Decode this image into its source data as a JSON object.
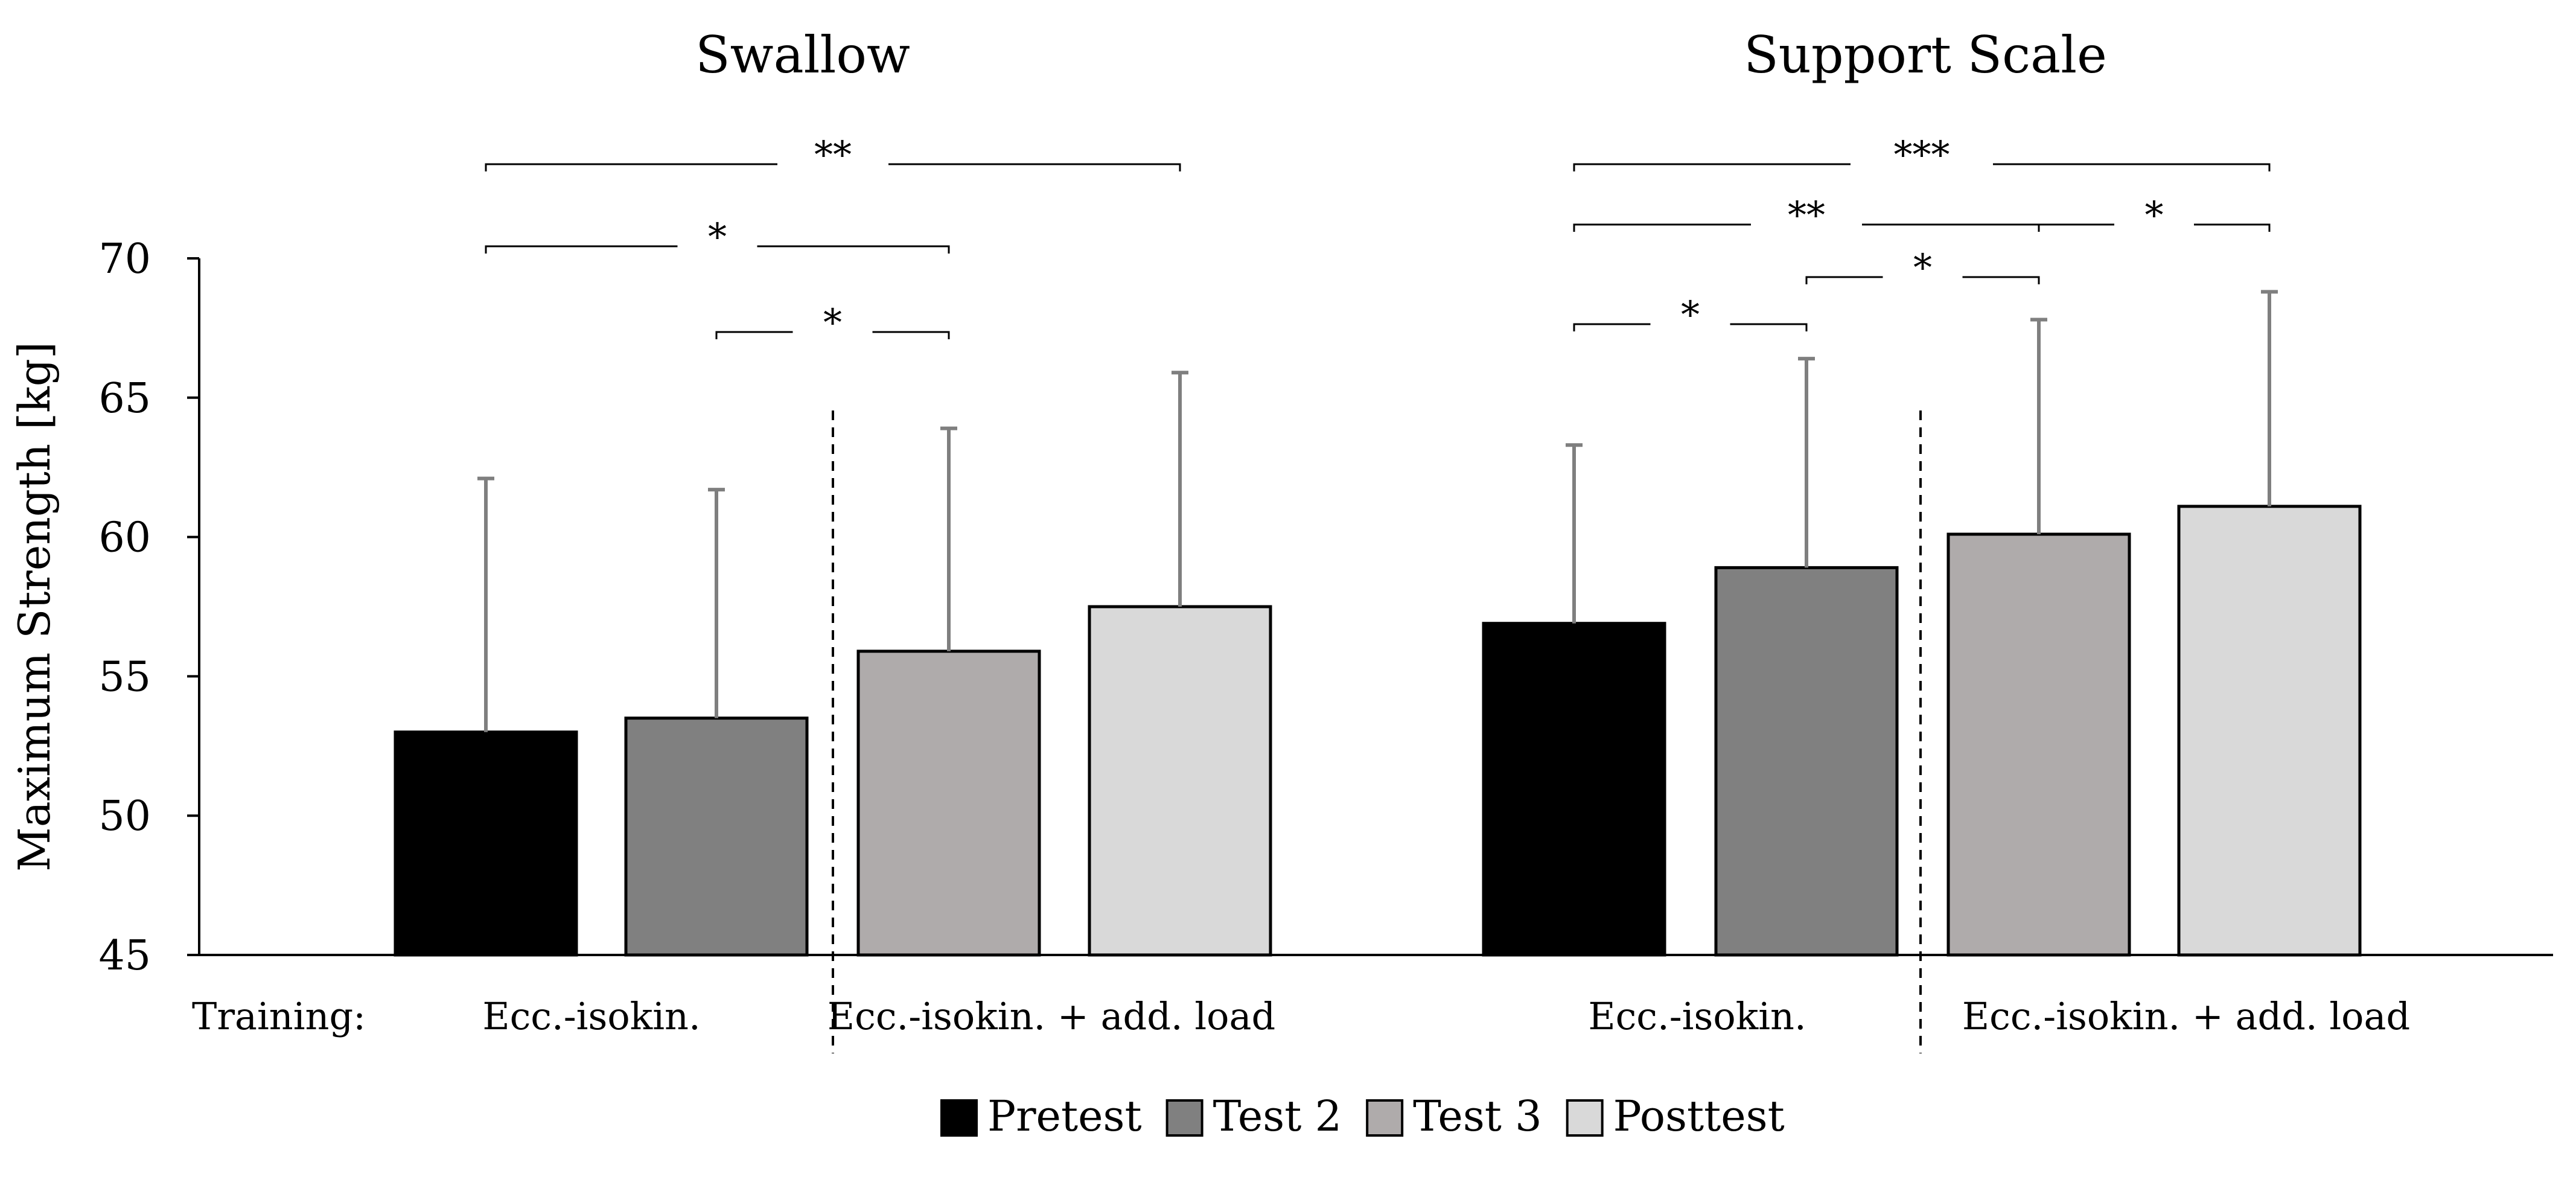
{
  "chart_data": [
    {
      "type": "bar",
      "title": "Swallow",
      "series": [
        {
          "name": "Pretest",
          "value": 53.0,
          "sd": 9.1
        },
        {
          "name": "Test 2",
          "value": 53.5,
          "sd": 8.2
        },
        {
          "name": "Test 3",
          "value": 55.9,
          "sd": 8.0
        },
        {
          "name": "Posttest",
          "value": 57.5,
          "sd": 8.4
        }
      ],
      "training_groups": [
        {
          "label": "Ecc.-isokin.",
          "series": [
            "Pretest",
            "Test 2"
          ]
        },
        {
          "label": "Ecc.-isokin. + add. load",
          "series": [
            "Test 3",
            "Posttest"
          ]
        }
      ],
      "significance": [
        {
          "from": "Pretest",
          "to": "Posttest",
          "label": "**"
        },
        {
          "from": "Pretest",
          "to": "Test 3",
          "label": "*"
        },
        {
          "from": "Test 2",
          "to": "Test 3",
          "label": "*"
        }
      ],
      "ylabel": "Maximum Strength [kg]",
      "ylim": [
        45,
        70
      ],
      "yticks": [
        45,
        50,
        55,
        60,
        65,
        70
      ]
    },
    {
      "type": "bar",
      "title": "Support Scale",
      "series": [
        {
          "name": "Pretest",
          "value": 56.9,
          "sd": 6.4
        },
        {
          "name": "Test 2",
          "value": 58.9,
          "sd": 7.5
        },
        {
          "name": "Test 3",
          "value": 60.1,
          "sd": 7.7
        },
        {
          "name": "Posttest",
          "value": 61.1,
          "sd": 7.7
        }
      ],
      "training_groups": [
        {
          "label": "Ecc.-isokin.",
          "series": [
            "Pretest",
            "Test 2"
          ]
        },
        {
          "label": "Ecc.-isokin. + add. load",
          "series": [
            "Test 3",
            "Posttest"
          ]
        }
      ],
      "significance": [
        {
          "from": "Pretest",
          "to": "Posttest",
          "label": "***"
        },
        {
          "from": "Pretest",
          "to": "Test 3",
          "label": "**"
        },
        {
          "from": "Test 3",
          "to": "Posttest",
          "label": "*"
        },
        {
          "from": "Test 2",
          "to": "Test 3",
          "label": "*"
        },
        {
          "from": "Pretest",
          "to": "Test 2",
          "label": "*"
        }
      ],
      "ylabel": "Maximum Strength [kg]",
      "ylim": [
        45,
        70
      ],
      "yticks": [
        45,
        50,
        55,
        60,
        65,
        70
      ]
    }
  ],
  "training_label": "Training:",
  "legend": [
    {
      "name": "Pretest",
      "color": "#000000"
    },
    {
      "name": "Test 2",
      "color": "#808080"
    },
    {
      "name": "Test 3",
      "color": "#afabab"
    },
    {
      "name": "Posttest",
      "color": "#d9d9d9"
    }
  ]
}
